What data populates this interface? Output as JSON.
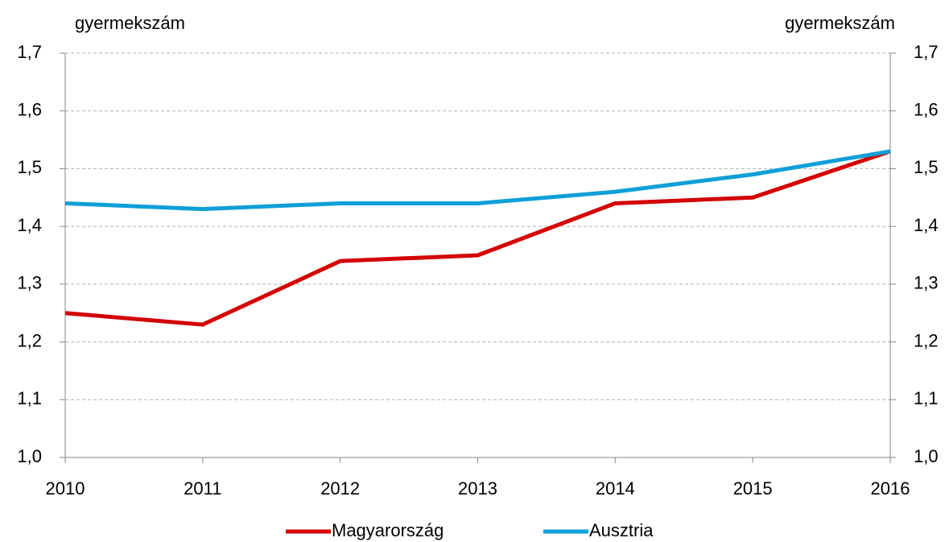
{
  "chart_data": {
    "type": "line",
    "ylabel": "gyermekszám",
    "y2label": "gyermekszám",
    "x": [
      2010,
      2011,
      2012,
      2013,
      2014,
      2015,
      2016
    ],
    "xlim": [
      2010,
      2016
    ],
    "xticks": [
      2010,
      2011,
      2012,
      2013,
      2014,
      2015,
      2016
    ],
    "series": [
      {
        "name": "Magyarország",
        "color": "#d40000",
        "values": [
          1.25,
          1.23,
          1.34,
          1.35,
          1.44,
          1.45,
          1.53
        ]
      },
      {
        "name": "Ausztria",
        "color": "#0f9fd8",
        "values": [
          1.44,
          1.43,
          1.44,
          1.44,
          1.46,
          1.49,
          1.53
        ]
      }
    ],
    "ylim": [
      1.0,
      1.7
    ],
    "yticks": [
      {
        "value": 1.0,
        "label": "1,0"
      },
      {
        "value": 1.1,
        "label": "1,1"
      },
      {
        "value": 1.2,
        "label": "1,2"
      },
      {
        "value": 1.3,
        "label": "1,3"
      },
      {
        "value": 1.4,
        "label": "1,4"
      },
      {
        "value": 1.5,
        "label": "1,5"
      },
      {
        "value": 1.6,
        "label": "1,6"
      },
      {
        "value": 1.7,
        "label": "1,7"
      }
    ],
    "y2lim": [
      1.0,
      1.7
    ],
    "y2ticks": [
      {
        "value": 1.0,
        "label": "1,0"
      },
      {
        "value": 1.1,
        "label": "1,1"
      },
      {
        "value": 1.2,
        "label": "1,2"
      },
      {
        "value": 1.3,
        "label": "1,3"
      },
      {
        "value": 1.4,
        "label": "1,4"
      },
      {
        "value": 1.5,
        "label": "1,5"
      },
      {
        "value": 1.6,
        "label": "1,6"
      },
      {
        "value": 1.7,
        "label": "1,7"
      }
    ],
    "grid": true,
    "legend": "bottom"
  }
}
